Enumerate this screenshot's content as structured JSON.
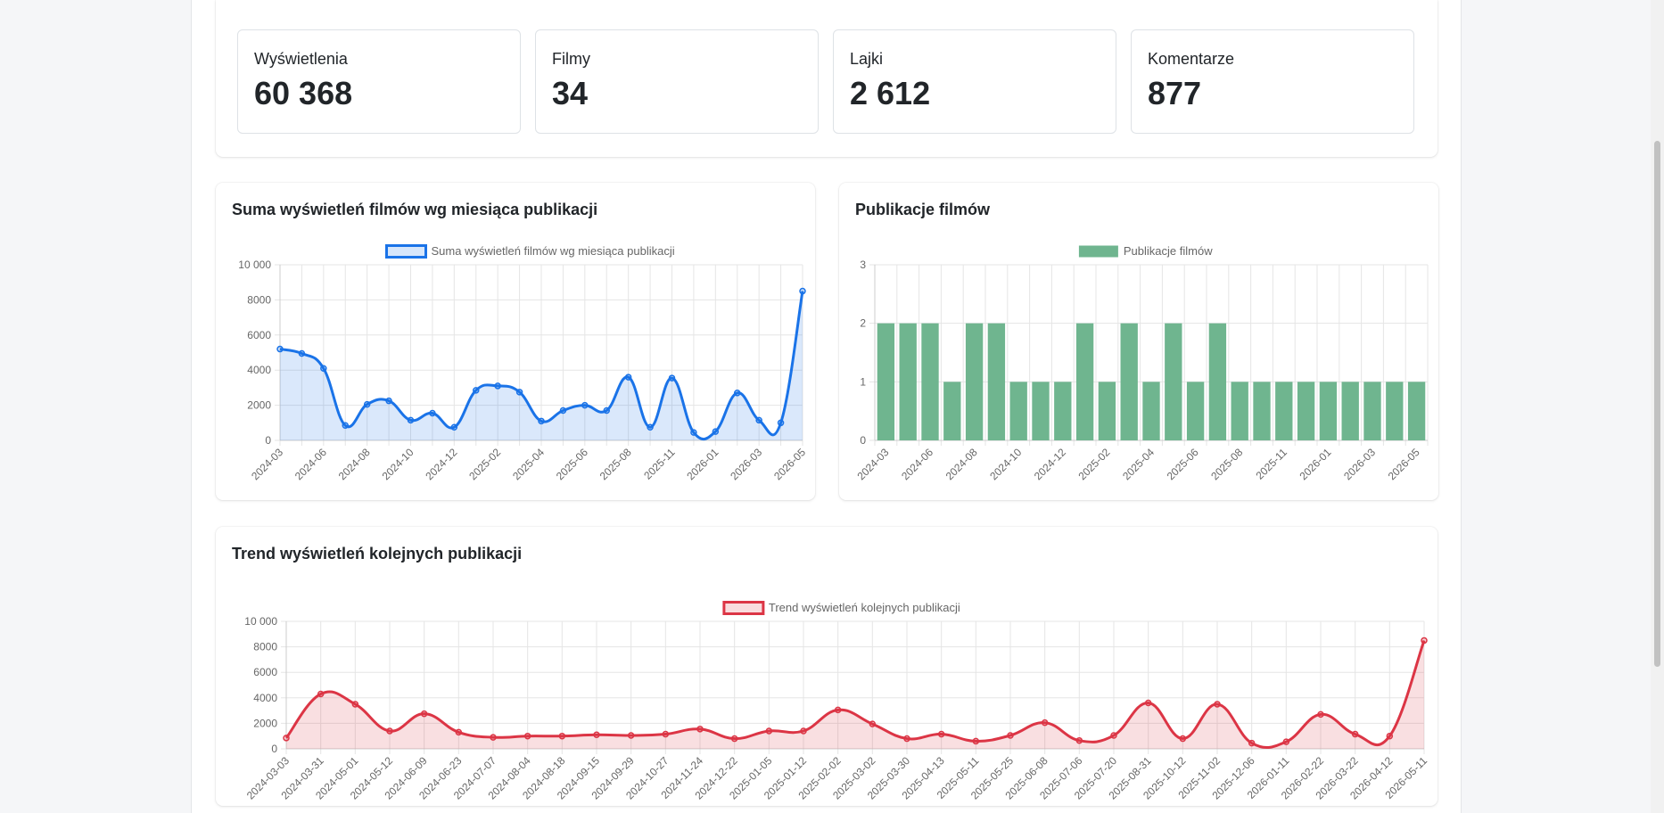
{
  "stats": [
    {
      "label": "Wyświetlenia",
      "value": "60 368"
    },
    {
      "label": "Filmy",
      "value": "34"
    },
    {
      "label": "Lajki",
      "value": "2 612"
    },
    {
      "label": "Komentarze",
      "value": "877"
    }
  ],
  "colors": {
    "blue": "#1a73e8",
    "green": "#6fb58f",
    "red": "#dc3545"
  },
  "chart_data": [
    {
      "type": "line",
      "title": "Suma wyświetleń filmów wg miesiąca publikacji",
      "legend": "Suma wyświetleń filmów wg miesiąca publikacji",
      "ylim": [
        0,
        10000
      ],
      "yticks": [
        "0",
        "2000",
        "4000",
        "6000",
        "8000",
        "10 000"
      ],
      "xtick_labels": [
        "2024-03",
        "2024-06",
        "2024-08",
        "2024-10",
        "2024-12",
        "2025-02",
        "2025-04",
        "2025-06",
        "2025-08",
        "2025-11",
        "2026-01",
        "2026-03",
        "2026-05"
      ],
      "values": [
        5200,
        4950,
        4100,
        850,
        2050,
        2250,
        1150,
        1550,
        750,
        2850,
        3100,
        2750,
        1100,
        1700,
        2000,
        1700,
        3600,
        750,
        3550,
        450,
        500,
        2700,
        1150,
        1000,
        8500
      ]
    },
    {
      "type": "bar",
      "title": "Publikacje filmów",
      "legend": "Publikacje filmów",
      "ylim": [
        0,
        3
      ],
      "yticks": [
        "0",
        "1",
        "2",
        "3"
      ],
      "xtick_labels": [
        "2024-03",
        "2024-06",
        "2024-08",
        "2024-10",
        "2024-12",
        "2025-02",
        "2025-04",
        "2025-06",
        "2025-08",
        "2025-11",
        "2026-01",
        "2026-03",
        "2026-05"
      ],
      "values": [
        2,
        2,
        2,
        1,
        2,
        2,
        1,
        1,
        1,
        2,
        1,
        2,
        1,
        2,
        1,
        2,
        1,
        1,
        1,
        1,
        1,
        1,
        1,
        1,
        1
      ]
    },
    {
      "type": "line",
      "title": "Trend wyświetleń kolejnych publikacji",
      "legend": "Trend wyświetleń kolejnych publikacji",
      "ylim": [
        0,
        10000
      ],
      "yticks": [
        "0",
        "2000",
        "4000",
        "6000",
        "8000",
        "10 000"
      ],
      "x": [
        "2024-03-03",
        "2024-03-31",
        "2024-05-01",
        "2024-05-12",
        "2024-06-09",
        "2024-06-23",
        "2024-07-07",
        "2024-08-04",
        "2024-08-18",
        "2024-09-15",
        "2024-09-29",
        "2024-10-27",
        "2024-11-24",
        "2024-12-22",
        "2025-01-05",
        "2025-01-12",
        "2025-02-02",
        "2025-03-02",
        "2025-03-30",
        "2025-04-13",
        "2025-05-11",
        "2025-05-25",
        "2025-06-08",
        "2025-07-06",
        "2025-07-20",
        "2025-08-31",
        "2025-10-12",
        "2025-11-02",
        "2025-12-06",
        "2026-01-11",
        "2026-02-22",
        "2026-03-22",
        "2026-04-12",
        "2026-05-11"
      ],
      "values": [
        850,
        4300,
        3500,
        1400,
        2750,
        1300,
        900,
        1000,
        1000,
        1100,
        1050,
        1150,
        1550,
        800,
        1400,
        1400,
        3050,
        1950,
        800,
        1150,
        600,
        1050,
        2050,
        650,
        1050,
        3600,
        800,
        3500,
        450,
        550,
        2700,
        1150,
        1000,
        8500
      ]
    }
  ]
}
